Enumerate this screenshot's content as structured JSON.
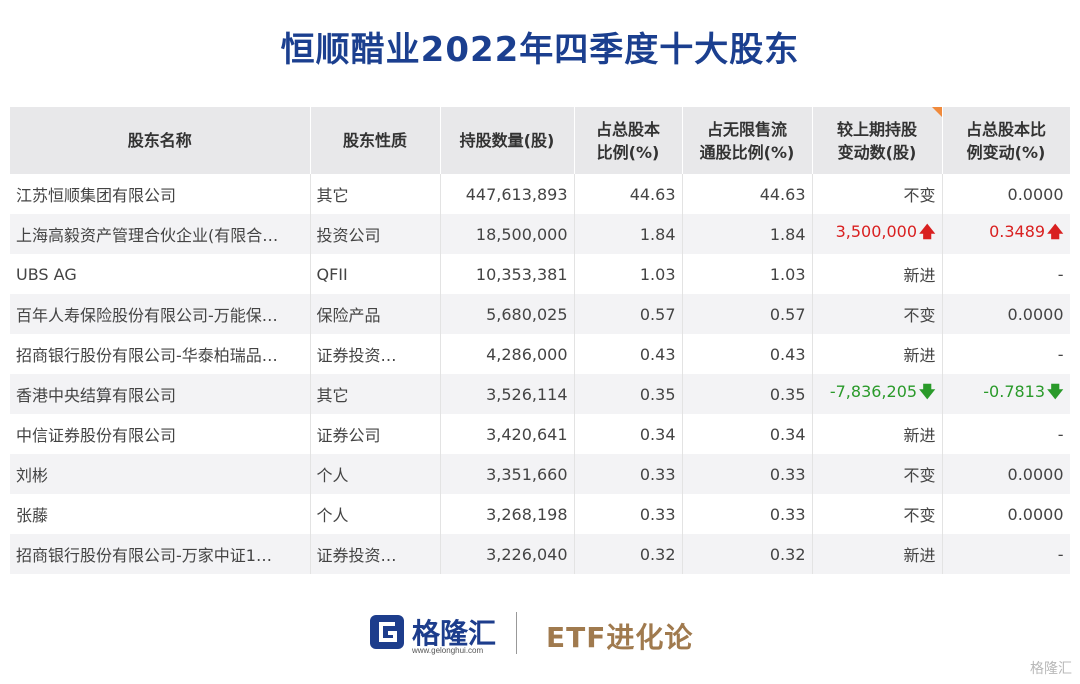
{
  "title": "恒顺醋业2022年四季度十大股东",
  "columns": [
    {
      "line1": "股东名称",
      "line2": ""
    },
    {
      "line1": "股东性质",
      "line2": ""
    },
    {
      "line1": "持股数量(股)",
      "line2": ""
    },
    {
      "line1": "占总股本",
      "line2": "比例(%)"
    },
    {
      "line1": "占无限售流",
      "line2": "通股比例(%)"
    },
    {
      "line1": "较上期持股",
      "line2": "变动数(股)"
    },
    {
      "line1": "占总股本比",
      "line2": "例变动(%)"
    }
  ],
  "rows": [
    {
      "name": "江苏恒顺集团有限公司",
      "type": "其它",
      "shares": "447,613,893",
      "pct_total": "44.63",
      "pct_float": "44.63",
      "change": "不变",
      "change_dir": "",
      "pct_change": "0.0000",
      "pct_change_dir": ""
    },
    {
      "name": "上海高毅资产管理合伙企业(有限合…",
      "type": "投资公司",
      "shares": "18,500,000",
      "pct_total": "1.84",
      "pct_float": "1.84",
      "change": "3,500,000",
      "change_dir": "up",
      "pct_change": "0.3489",
      "pct_change_dir": "up"
    },
    {
      "name": "UBS AG",
      "type": "QFII",
      "shares": "10,353,381",
      "pct_total": "1.03",
      "pct_float": "1.03",
      "change": "新进",
      "change_dir": "",
      "pct_change": "-",
      "pct_change_dir": ""
    },
    {
      "name": "百年人寿保险股份有限公司-万能保…",
      "type": "保险产品",
      "shares": "5,680,025",
      "pct_total": "0.57",
      "pct_float": "0.57",
      "change": "不变",
      "change_dir": "",
      "pct_change": "0.0000",
      "pct_change_dir": ""
    },
    {
      "name": "招商银行股份有限公司-华泰柏瑞品…",
      "type": "证券投资…",
      "shares": "4,286,000",
      "pct_total": "0.43",
      "pct_float": "0.43",
      "change": "新进",
      "change_dir": "",
      "pct_change": "-",
      "pct_change_dir": ""
    },
    {
      "name": "香港中央结算有限公司",
      "type": "其它",
      "shares": "3,526,114",
      "pct_total": "0.35",
      "pct_float": "0.35",
      "change": "-7,836,205",
      "change_dir": "down",
      "pct_change": "-0.7813",
      "pct_change_dir": "down"
    },
    {
      "name": "中信证券股份有限公司",
      "type": "证券公司",
      "shares": "3,420,641",
      "pct_total": "0.34",
      "pct_float": "0.34",
      "change": "新进",
      "change_dir": "",
      "pct_change": "-",
      "pct_change_dir": ""
    },
    {
      "name": "刘彬",
      "type": "个人",
      "shares": "3,351,660",
      "pct_total": "0.33",
      "pct_float": "0.33",
      "change": "不变",
      "change_dir": "",
      "pct_change": "0.0000",
      "pct_change_dir": ""
    },
    {
      "name": "张藤",
      "type": "个人",
      "shares": "3,268,198",
      "pct_total": "0.33",
      "pct_float": "0.33",
      "change": "不变",
      "change_dir": "",
      "pct_change": "0.0000",
      "pct_change_dir": ""
    },
    {
      "name": "招商银行股份有限公司-万家中证1…",
      "type": "证券投资…",
      "shares": "3,226,040",
      "pct_total": "0.32",
      "pct_float": "0.32",
      "change": "新进",
      "change_dir": "",
      "pct_change": "-",
      "pct_change_dir": ""
    }
  ],
  "arrows": {
    "up": "🡅",
    "down": "🡇"
  },
  "colors": {
    "title": "#1b3f8f",
    "up": "#d92020",
    "down": "#2a9a2a",
    "brand": "#a07a4e",
    "logo": "#1d3d8c"
  },
  "footer": {
    "logo_text": "格隆汇",
    "logo_url": "www.gelonghui.com",
    "brand": "ETF进化论",
    "watermark": "格隆汇"
  }
}
